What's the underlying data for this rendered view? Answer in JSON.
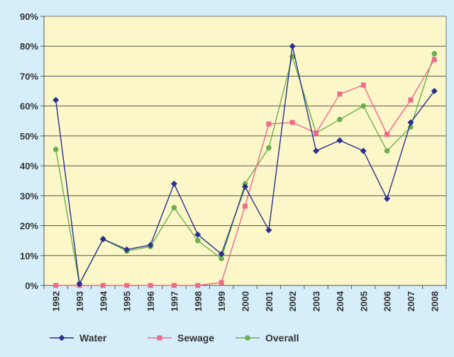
{
  "chart_data": {
    "type": "line",
    "categories": [
      "1992",
      "1993",
      "1994",
      "1995",
      "1996",
      "1997",
      "1998",
      "1999",
      "2000",
      "2001",
      "2002",
      "2003",
      "2004",
      "2005",
      "2006",
      "2007",
      "2008"
    ],
    "ylim": [
      0,
      90
    ],
    "yticks": [
      "0%",
      "10%",
      "20%",
      "30%",
      "40%",
      "50%",
      "60%",
      "70%",
      "80%",
      "90%"
    ],
    "grid": true,
    "legend_position": "bottom",
    "series": [
      {
        "name": "Water",
        "color": "#2b2f8f",
        "marker": "diamond",
        "values": [
          62,
          0.5,
          15.5,
          12,
          13.5,
          34,
          17,
          10.5,
          33,
          18.5,
          80,
          45,
          48.5,
          45,
          29,
          54.5,
          65
        ]
      },
      {
        "name": "Sewage",
        "color": "#ec6b8b",
        "marker": "square",
        "values": [
          0,
          0,
          0,
          0,
          0,
          0,
          0,
          1,
          26.5,
          54,
          54.5,
          51,
          64,
          67,
          50.5,
          62,
          75.5
        ]
      },
      {
        "name": "Overall",
        "color": "#6ab04c",
        "marker": "circle",
        "values": [
          45.5,
          0.5,
          15.5,
          11.5,
          13,
          26,
          15,
          9,
          34,
          46,
          76.5,
          51,
          55.5,
          60,
          45,
          53,
          77.5
        ]
      }
    ]
  }
}
